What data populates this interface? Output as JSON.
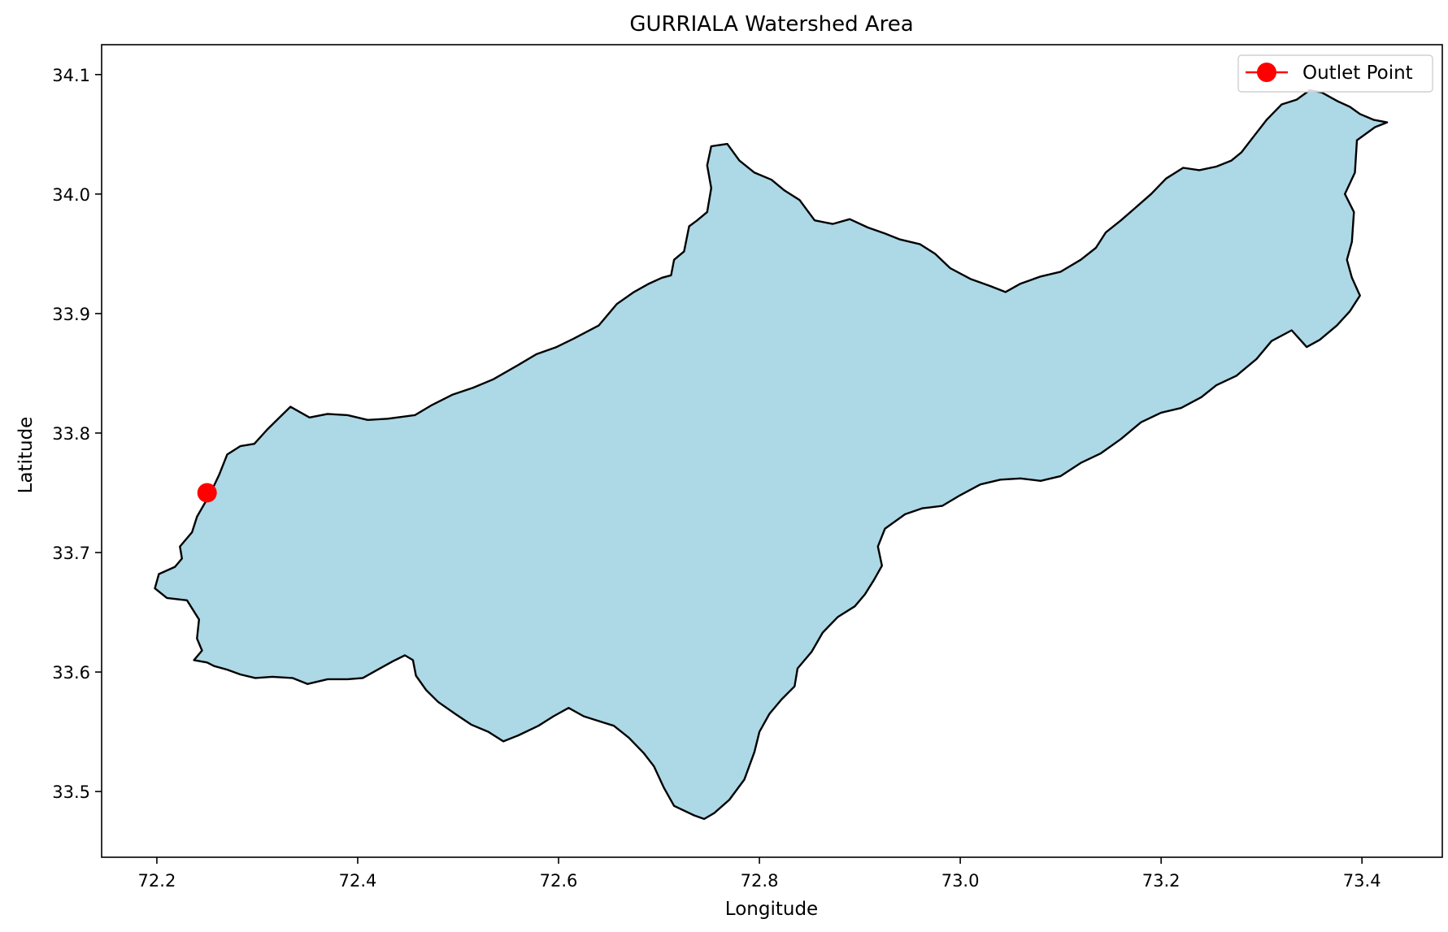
{
  "chart_data": {
    "type": "map",
    "title": "GURRIALA Watershed Area",
    "xlabel": "Longitude",
    "ylabel": "Latitude",
    "xlim": [
      72.145,
      73.48
    ],
    "ylim": [
      33.445,
      34.125
    ],
    "xticks": [
      72.2,
      72.4,
      72.6,
      72.8,
      73.0,
      73.2,
      73.4
    ],
    "xtick_labels": [
      "72.2",
      "72.4",
      "72.6",
      "72.8",
      "73.0",
      "73.2",
      "73.4"
    ],
    "yticks": [
      33.5,
      33.6,
      33.7,
      33.8,
      33.9,
      34.0,
      34.1
    ],
    "ytick_labels": [
      "33.5",
      "33.6",
      "33.7",
      "33.8",
      "33.9",
      "34.0",
      "34.1"
    ],
    "grid": false,
    "legend_position": "top-right",
    "watershed": {
      "fill_color": "#add8e6",
      "edge_color": "#000000",
      "boundary": [
        [
          72.253,
          33.749
        ],
        [
          72.262,
          33.765
        ],
        [
          72.27,
          33.782
        ],
        [
          72.283,
          33.789
        ],
        [
          72.297,
          33.791
        ],
        [
          72.31,
          33.803
        ],
        [
          72.333,
          33.822
        ],
        [
          72.352,
          33.813
        ],
        [
          72.37,
          33.816
        ],
        [
          72.39,
          33.815
        ],
        [
          72.41,
          33.811
        ],
        [
          72.43,
          33.812
        ],
        [
          72.457,
          33.815
        ],
        [
          72.473,
          33.823
        ],
        [
          72.494,
          33.832
        ],
        [
          72.515,
          33.838
        ],
        [
          72.535,
          33.845
        ],
        [
          72.56,
          33.857
        ],
        [
          72.578,
          33.866
        ],
        [
          72.598,
          33.872
        ],
        [
          72.615,
          33.879
        ],
        [
          72.64,
          33.89
        ],
        [
          72.658,
          33.908
        ],
        [
          72.675,
          33.918
        ],
        [
          72.69,
          33.925
        ],
        [
          72.703,
          33.93
        ],
        [
          72.712,
          33.932
        ],
        [
          72.715,
          33.945
        ],
        [
          72.725,
          33.952
        ],
        [
          72.73,
          33.973
        ],
        [
          72.738,
          33.978
        ],
        [
          72.748,
          33.985
        ],
        [
          72.752,
          34.005
        ],
        [
          72.748,
          34.024
        ],
        [
          72.752,
          34.04
        ],
        [
          72.768,
          34.042
        ],
        [
          72.78,
          34.028
        ],
        [
          72.795,
          34.018
        ],
        [
          72.812,
          34.012
        ],
        [
          72.825,
          34.003
        ],
        [
          72.84,
          33.995
        ],
        [
          72.855,
          33.978
        ],
        [
          72.873,
          33.975
        ],
        [
          72.89,
          33.979
        ],
        [
          72.908,
          33.972
        ],
        [
          72.925,
          33.967
        ],
        [
          72.94,
          33.962
        ],
        [
          72.96,
          33.958
        ],
        [
          72.975,
          33.95
        ],
        [
          72.99,
          33.938
        ],
        [
          73.01,
          33.929
        ],
        [
          73.03,
          33.923
        ],
        [
          73.045,
          33.918
        ],
        [
          73.06,
          33.925
        ],
        [
          73.08,
          33.931
        ],
        [
          73.1,
          33.935
        ],
        [
          73.12,
          33.945
        ],
        [
          73.135,
          33.955
        ],
        [
          73.145,
          33.968
        ],
        [
          73.16,
          33.978
        ],
        [
          73.175,
          33.989
        ],
        [
          73.19,
          34.0
        ],
        [
          73.205,
          34.013
        ],
        [
          73.222,
          34.022
        ],
        [
          73.238,
          34.02
        ],
        [
          73.255,
          34.023
        ],
        [
          73.27,
          34.028
        ],
        [
          73.28,
          34.035
        ],
        [
          73.292,
          34.048
        ],
        [
          73.305,
          34.062
        ],
        [
          73.32,
          34.075
        ],
        [
          73.335,
          34.079
        ],
        [
          73.348,
          34.087
        ],
        [
          73.36,
          34.085
        ],
        [
          73.375,
          34.078
        ],
        [
          73.388,
          34.073
        ],
        [
          73.398,
          34.067
        ],
        [
          73.412,
          34.062
        ],
        [
          73.425,
          34.06
        ],
        [
          73.413,
          34.056
        ],
        [
          73.395,
          34.045
        ],
        [
          73.393,
          34.018
        ],
        [
          73.383,
          34.0
        ],
        [
          73.392,
          33.985
        ],
        [
          73.39,
          33.96
        ],
        [
          73.385,
          33.945
        ],
        [
          73.39,
          33.93
        ],
        [
          73.398,
          33.915
        ],
        [
          73.388,
          33.902
        ],
        [
          73.375,
          33.89
        ],
        [
          73.358,
          33.878
        ],
        [
          73.345,
          33.872
        ],
        [
          73.33,
          33.886
        ],
        [
          73.31,
          33.877
        ],
        [
          73.295,
          33.862
        ],
        [
          73.275,
          33.848
        ],
        [
          73.255,
          33.84
        ],
        [
          73.24,
          33.83
        ],
        [
          73.22,
          33.821
        ],
        [
          73.2,
          33.817
        ],
        [
          73.18,
          33.809
        ],
        [
          73.16,
          33.795
        ],
        [
          73.14,
          33.783
        ],
        [
          73.12,
          33.775
        ],
        [
          73.1,
          33.764
        ],
        [
          73.08,
          33.76
        ],
        [
          73.06,
          33.762
        ],
        [
          73.04,
          33.761
        ],
        [
          73.02,
          33.757
        ],
        [
          73.0,
          33.748
        ],
        [
          72.982,
          33.739
        ],
        [
          72.962,
          33.737
        ],
        [
          72.945,
          33.732
        ],
        [
          72.925,
          33.72
        ],
        [
          72.918,
          33.705
        ],
        [
          72.922,
          33.689
        ],
        [
          72.914,
          33.677
        ],
        [
          72.905,
          33.665
        ],
        [
          72.895,
          33.655
        ],
        [
          72.878,
          33.646
        ],
        [
          72.863,
          33.633
        ],
        [
          72.852,
          33.617
        ],
        [
          72.838,
          33.603
        ],
        [
          72.835,
          33.588
        ],
        [
          72.822,
          33.577
        ],
        [
          72.81,
          33.565
        ],
        [
          72.8,
          33.55
        ],
        [
          72.795,
          33.533
        ],
        [
          72.785,
          33.51
        ],
        [
          72.77,
          33.493
        ],
        [
          72.755,
          33.482
        ],
        [
          72.745,
          33.477
        ],
        [
          72.735,
          33.48
        ],
        [
          72.715,
          33.488
        ],
        [
          72.705,
          33.503
        ],
        [
          72.695,
          33.521
        ],
        [
          72.685,
          33.532
        ],
        [
          72.67,
          33.545
        ],
        [
          72.655,
          33.555
        ],
        [
          72.64,
          33.559
        ],
        [
          72.625,
          33.563
        ],
        [
          72.61,
          33.57
        ],
        [
          72.595,
          33.563
        ],
        [
          72.58,
          33.555
        ],
        [
          72.56,
          33.547
        ],
        [
          72.545,
          33.542
        ],
        [
          72.53,
          33.55
        ],
        [
          72.513,
          33.556
        ],
        [
          72.497,
          33.565
        ],
        [
          72.48,
          33.575
        ],
        [
          72.468,
          33.585
        ],
        [
          72.458,
          33.597
        ],
        [
          72.455,
          33.61
        ],
        [
          72.447,
          33.614
        ],
        [
          72.435,
          33.609
        ],
        [
          72.42,
          33.602
        ],
        [
          72.405,
          33.595
        ],
        [
          72.39,
          33.594
        ],
        [
          72.37,
          33.594
        ],
        [
          72.35,
          33.59
        ],
        [
          72.335,
          33.595
        ],
        [
          72.315,
          33.596
        ],
        [
          72.298,
          33.595
        ],
        [
          72.283,
          33.598
        ],
        [
          72.27,
          33.602
        ],
        [
          72.257,
          33.605
        ],
        [
          72.25,
          33.608
        ],
        [
          72.237,
          33.61
        ],
        [
          72.245,
          33.618
        ],
        [
          72.24,
          33.628
        ],
        [
          72.242,
          33.644
        ],
        [
          72.23,
          33.66
        ],
        [
          72.21,
          33.662
        ],
        [
          72.198,
          33.67
        ],
        [
          72.202,
          33.682
        ],
        [
          72.218,
          33.688
        ],
        [
          72.225,
          33.695
        ],
        [
          72.223,
          33.705
        ],
        [
          72.235,
          33.717
        ],
        [
          72.24,
          33.73
        ],
        [
          72.253,
          33.749
        ]
      ]
    },
    "series": [
      {
        "name": "Outlet Point",
        "type": "point",
        "color": "#ff0000",
        "x": [
          72.25
        ],
        "y": [
          33.75
        ]
      }
    ]
  }
}
